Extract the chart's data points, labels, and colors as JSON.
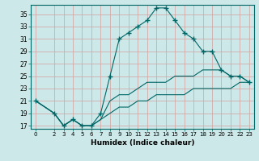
{
  "title": "",
  "xlabel": "Humidex (Indice chaleur)",
  "ylabel": "",
  "bg_color": "#cce8e8",
  "grid_color": "#d4a0a0",
  "line_color": "#006666",
  "marker": "+",
  "line1_x": [
    0,
    2,
    3,
    4,
    5,
    6,
    7,
    8,
    9,
    10,
    11,
    12,
    13,
    14,
    15,
    16,
    17,
    18,
    19,
    20,
    21,
    22,
    23
  ],
  "line1_y": [
    21,
    19,
    17,
    18,
    17,
    17,
    19,
    25,
    31,
    32,
    33,
    34,
    36,
    36,
    34,
    32,
    31,
    29,
    29,
    26,
    25,
    25,
    24
  ],
  "line2_x": [
    0,
    2,
    3,
    4,
    5,
    6,
    7,
    8,
    9,
    10,
    11,
    12,
    13,
    14,
    15,
    16,
    17,
    18,
    19,
    20,
    21,
    22,
    23
  ],
  "line2_y": [
    21,
    19,
    17,
    18,
    17,
    17,
    18,
    21,
    22,
    22,
    23,
    24,
    24,
    24,
    25,
    25,
    25,
    26,
    26,
    26,
    25,
    25,
    24
  ],
  "line3_x": [
    0,
    2,
    3,
    4,
    5,
    6,
    7,
    8,
    9,
    10,
    11,
    12,
    13,
    14,
    15,
    16,
    17,
    18,
    19,
    20,
    21,
    22,
    23
  ],
  "line3_y": [
    21,
    19,
    17,
    18,
    17,
    17,
    18,
    19,
    20,
    20,
    21,
    21,
    22,
    22,
    22,
    22,
    23,
    23,
    23,
    23,
    23,
    24,
    24
  ],
  "xlim": [
    -0.5,
    23.5
  ],
  "ylim": [
    16.5,
    36.5
  ],
  "yticks": [
    17,
    19,
    21,
    23,
    25,
    27,
    29,
    31,
    33,
    35
  ],
  "xticks": [
    0,
    2,
    3,
    4,
    5,
    6,
    7,
    8,
    9,
    10,
    11,
    12,
    13,
    14,
    15,
    16,
    17,
    18,
    19,
    20,
    21,
    22,
    23
  ]
}
